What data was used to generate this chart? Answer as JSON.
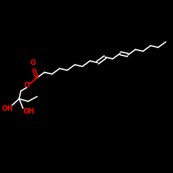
{
  "fig_bg": "#000000",
  "bond_color": "#ffffff",
  "o_color": "#ff0000",
  "oh_color": "#ff0000",
  "lw": 1.3,
  "figsize": [
    2.5,
    2.5
  ],
  "dpi": 100,
  "xlim": [
    0,
    10
  ],
  "ylim": [
    0,
    10
  ]
}
